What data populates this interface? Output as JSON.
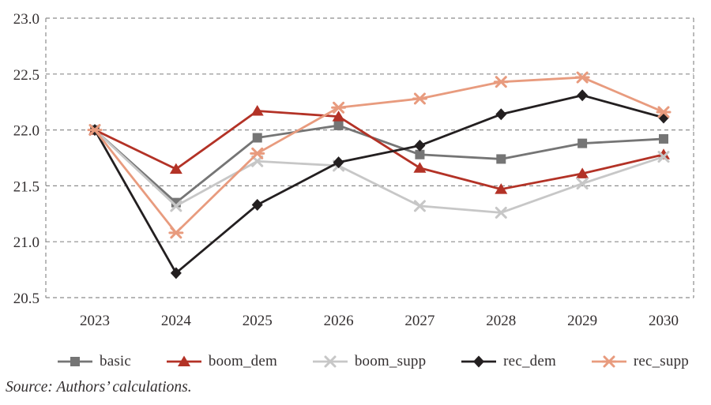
{
  "chart_data": {
    "type": "line",
    "title": "",
    "xlabel": "",
    "ylabel": "",
    "categories": [
      "2023",
      "2024",
      "2025",
      "2026",
      "2027",
      "2028",
      "2029",
      "2030"
    ],
    "series": [
      {
        "name": "basic",
        "color": "#757575",
        "marker": "square",
        "values": [
          22.0,
          21.35,
          21.93,
          22.04,
          21.78,
          21.74,
          21.88,
          21.92
        ]
      },
      {
        "name": "boom_dem",
        "color": "#b33226",
        "marker": "triangle",
        "values": [
          22.0,
          21.65,
          22.17,
          22.12,
          21.66,
          21.47,
          21.61,
          21.78
        ]
      },
      {
        "name": "boom_supp",
        "color": "#c7c7c7",
        "marker": "x",
        "values": [
          22.0,
          21.32,
          21.72,
          21.68,
          21.32,
          21.26,
          21.52,
          21.76
        ]
      },
      {
        "name": "rec_dem",
        "color": "#231f20",
        "marker": "diamond",
        "values": [
          22.0,
          20.72,
          21.33,
          21.71,
          21.86,
          22.14,
          22.31,
          22.11
        ]
      },
      {
        "name": "rec_supp",
        "color": "#e89b7e",
        "marker": "asterisk",
        "values": [
          22.0,
          21.08,
          21.79,
          22.2,
          22.28,
          22.43,
          22.47,
          22.16
        ]
      }
    ],
    "ylim": [
      20.5,
      23.0
    ],
    "y_ticks": [
      20.5,
      21.0,
      21.5,
      22.0,
      22.5,
      23.0
    ],
    "grid": "dashed horizontal gridlines, dashed plot border",
    "legend_position": "bottom"
  },
  "colors": {
    "grid": "#8c8c8c",
    "text": "#332f30",
    "background": "#ffffff"
  },
  "source_note": "Source: Authors’ calculations."
}
